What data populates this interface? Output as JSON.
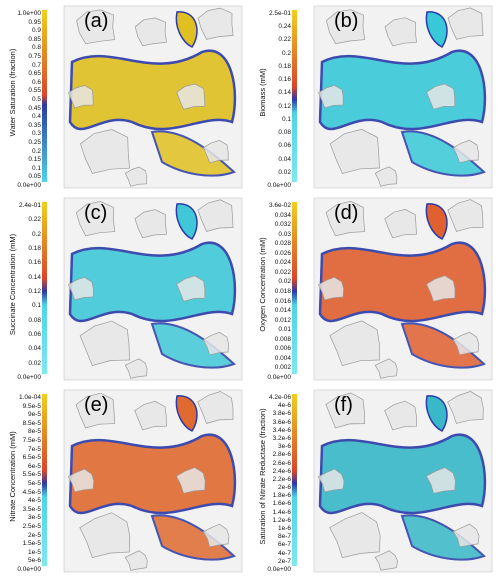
{
  "panels": [
    {
      "tag": "(a)",
      "quantity": "Water Saturation (fraction)",
      "ticks": [
        "1.0e+00",
        "0.95",
        "0.9",
        "0.85",
        "0.8",
        "0.75",
        "0.7",
        "0.65",
        "0.6",
        "0.55",
        "0.5",
        "0.45",
        "0.4",
        "0.35",
        "0.3",
        "0.25",
        "0.2",
        "0.15",
        "0.1",
        "0.05",
        "0.0e+00"
      ],
      "colormap": "blue-to-yellow",
      "dominant_color": "#e0c020"
    },
    {
      "tag": "(b)",
      "quantity": "Biomass (mM)",
      "ticks": [
        "2.5e-01",
        "0.24",
        "0.22",
        "0.2",
        "0.18",
        "0.16",
        "0.14",
        "0.12",
        "0.1",
        "0.08",
        "0.06",
        "0.04",
        "0.02",
        "0.0e+00"
      ],
      "colormap": "cyan-blue-red-yellow",
      "dominant_color": "#38c8d8"
    },
    {
      "tag": "(c)",
      "quantity": "Succinate Concentration (mM)",
      "ticks": [
        "2.4e-01",
        "0.22",
        "0.2",
        "0.18",
        "0.16",
        "0.14",
        "0.12",
        "0.1",
        "0.08",
        "0.06",
        "0.04",
        "0.02",
        "0.0e+00"
      ],
      "colormap": "cyan-blue-red-yellow",
      "dominant_color": "#40c8d8"
    },
    {
      "tag": "(d)",
      "quantity": "Oxygen Concentration (mM)",
      "ticks": [
        "3.6e-02",
        "0.034",
        "0.032",
        "0.03",
        "0.028",
        "0.026",
        "0.024",
        "0.022",
        "0.02",
        "0.018",
        "0.016",
        "0.014",
        "0.012",
        "0.01",
        "0.008",
        "0.006",
        "0.004",
        "0.002",
        "0.0e+00"
      ],
      "colormap": "cyan-blue-red-yellow",
      "dominant_color": "#e06030"
    },
    {
      "tag": "(e)",
      "quantity": "Nitrate Concentration (mM)",
      "ticks": [
        "1.0e-04",
        "9.5e-5",
        "9e-5",
        "8.5e-5",
        "8e-5",
        "7.5e-5",
        "7e-5",
        "6.5e-5",
        "6e-5",
        "5.5e-5",
        "5e-5",
        "4.5e-5",
        "4e-5",
        "3.5e-5",
        "3e-5",
        "2.5e-5",
        "2e-5",
        "1.5e-5",
        "1e-5",
        "5e-6",
        "0.0e+00"
      ],
      "colormap": "cyan-blue-red-yellow",
      "dominant_color": "#e06a30"
    },
    {
      "tag": "(f)",
      "quantity": "Saturation of Nitrate Reductase (fraction)",
      "ticks": [
        "4.2e-06",
        "4e-6",
        "3.8e-6",
        "3.6e-6",
        "3.4e-6",
        "3.2e-6",
        "3e-6",
        "2.8e-6",
        "2.6e-6",
        "2.4e-6",
        "2.2e-6",
        "2e-6",
        "1.8e-6",
        "1.6e-6",
        "1.4e-6",
        "1.2e-6",
        "1e-6",
        "8e-7",
        "6e-7",
        "4e-7",
        "2e-7",
        "0.0e+00"
      ],
      "colormap": "cyan-blue-red-yellow",
      "dominant_color": "#38b8c8"
    }
  ],
  "colors": {
    "grain": "#e6e6e6",
    "grain_edge": "#9a9a9a",
    "cyan": "#4fd4e6",
    "blue": "#2a3aa8",
    "red": "#d8452a",
    "yellow": "#f0d020"
  }
}
